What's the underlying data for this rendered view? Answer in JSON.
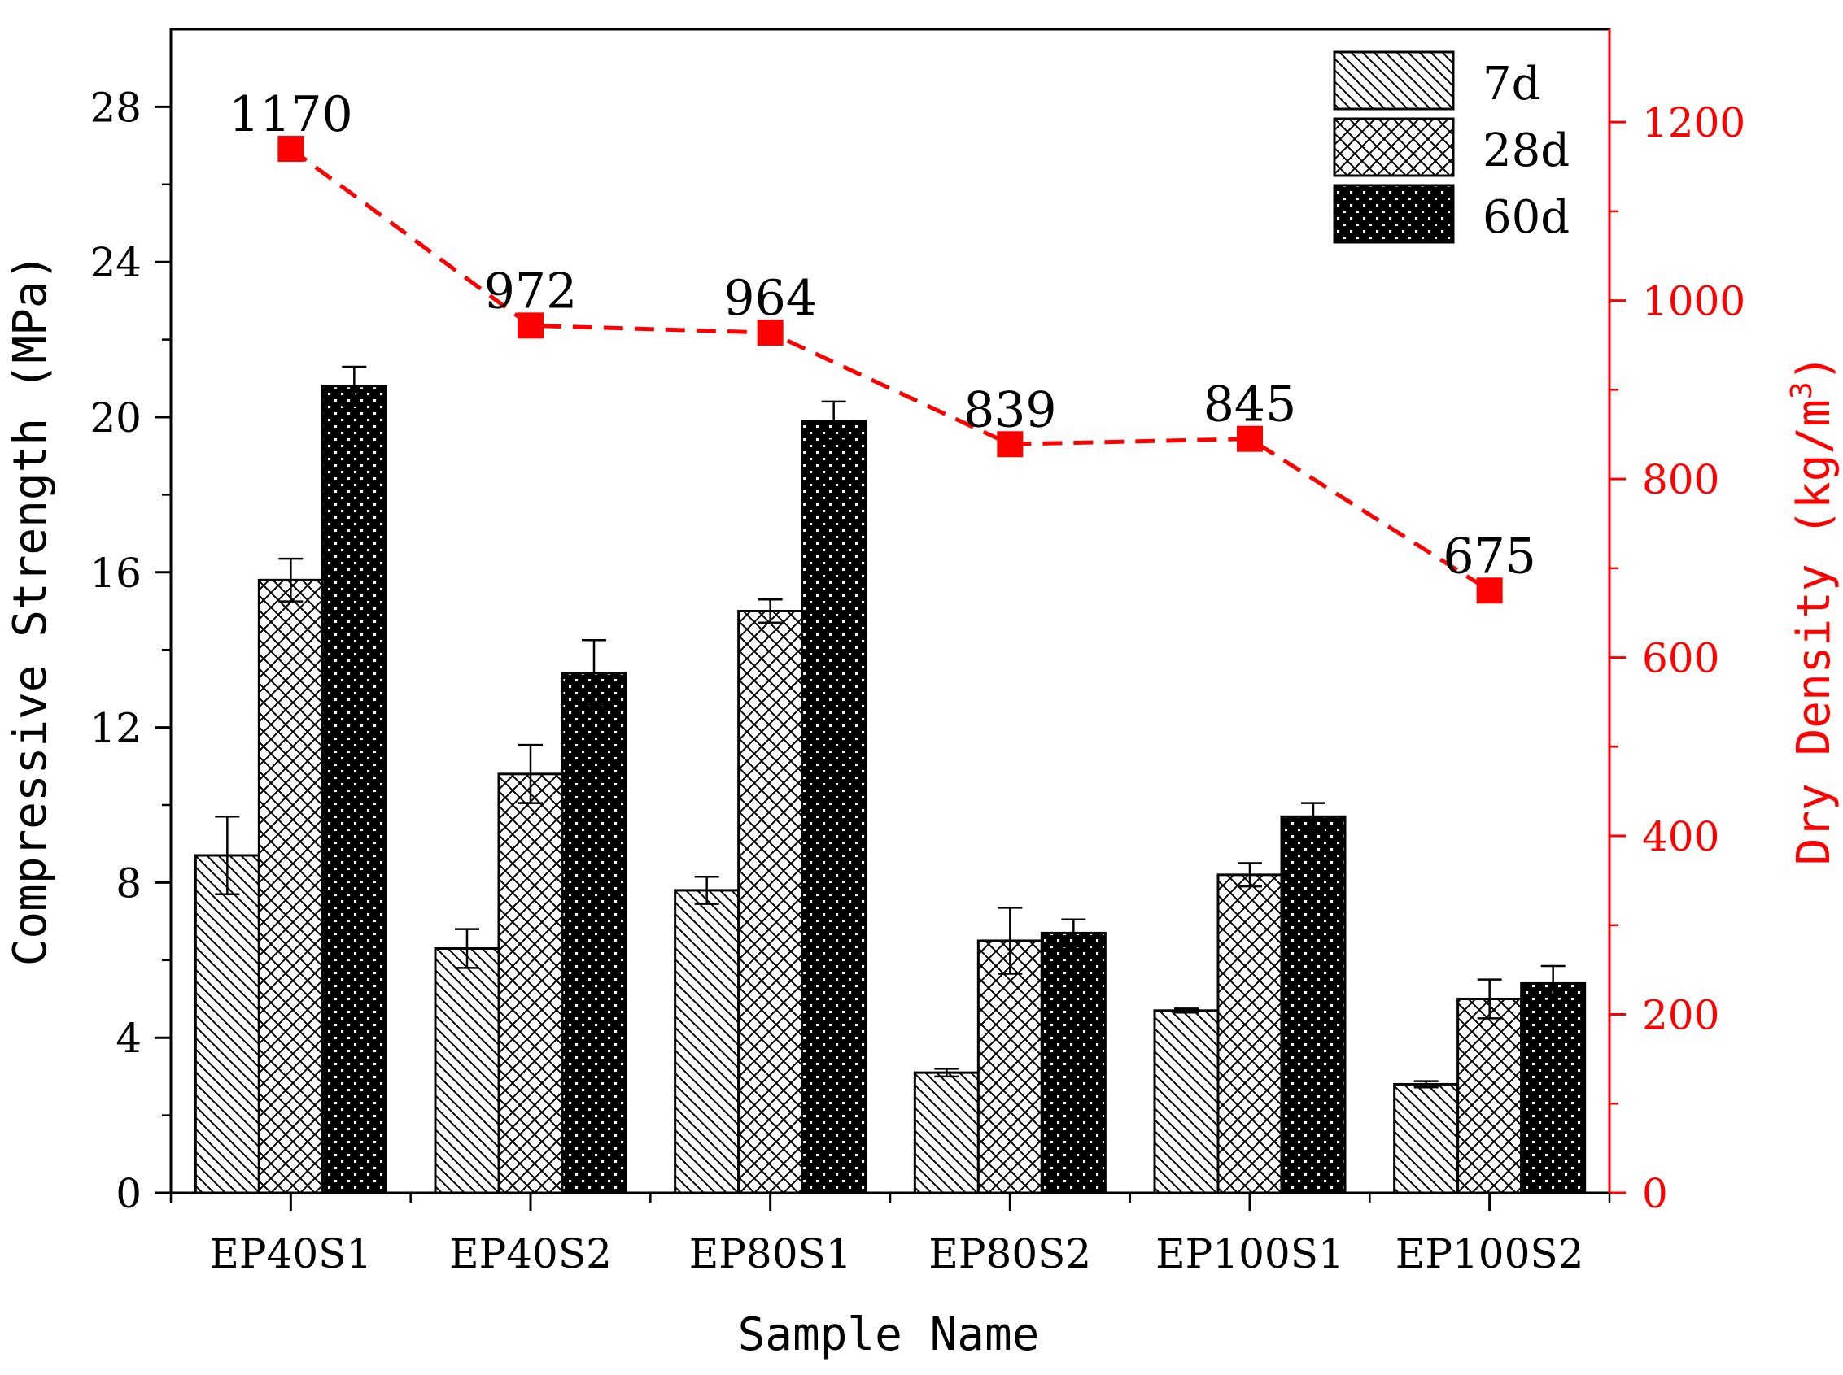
{
  "chart_data": {
    "type": "bar",
    "title": "",
    "xlabel": "Sample Name",
    "ylabel": "Compressive Strength (MPa)",
    "y2label_prefix": "Dry Density (kg/m",
    "y2label_sup": "3",
    "y2label_suffix": ")",
    "ylim": [
      0,
      30
    ],
    "y2lim": [
      0,
      1304
    ],
    "yticks": [
      "0",
      "4",
      "8",
      "12",
      "16",
      "20",
      "24",
      "28"
    ],
    "y2ticks": [
      "0",
      "200",
      "400",
      "600",
      "800",
      "1000",
      "1200"
    ],
    "categories": [
      "EP40S1",
      "EP40S2",
      "EP80S1",
      "EP80S2",
      "EP100S1",
      "EP100S2"
    ],
    "series": [
      {
        "name": "7d",
        "pattern": "diagonal",
        "values": [
          8.7,
          6.3,
          7.8,
          3.1,
          4.7,
          2.8
        ],
        "errors": [
          1.0,
          0.5,
          0.35,
          0.1,
          0.05,
          0.08
        ]
      },
      {
        "name": "28d",
        "pattern": "crosshatch",
        "values": [
          15.8,
          10.8,
          15.0,
          6.5,
          8.2,
          5.0
        ],
        "errors": [
          0.55,
          0.75,
          0.3,
          0.85,
          0.3,
          0.5
        ]
      },
      {
        "name": "60d",
        "pattern": "dots",
        "values": [
          20.8,
          13.4,
          19.9,
          6.7,
          9.7,
          5.4
        ],
        "errors": [
          0.5,
          0.85,
          0.5,
          0.35,
          0.35,
          0.45
        ]
      }
    ],
    "density": {
      "name": "Dry Density",
      "axis": "right",
      "values": [
        1170,
        972,
        964,
        839,
        845,
        675
      ],
      "labels": [
        "1170",
        "972",
        "964",
        "839",
        "845",
        "675"
      ]
    },
    "colors": {
      "axis": "#000000",
      "density": "#ff0000",
      "bar_dark": "#000000",
      "bar_light": "#ffffff"
    },
    "legend_position": "top-right"
  }
}
